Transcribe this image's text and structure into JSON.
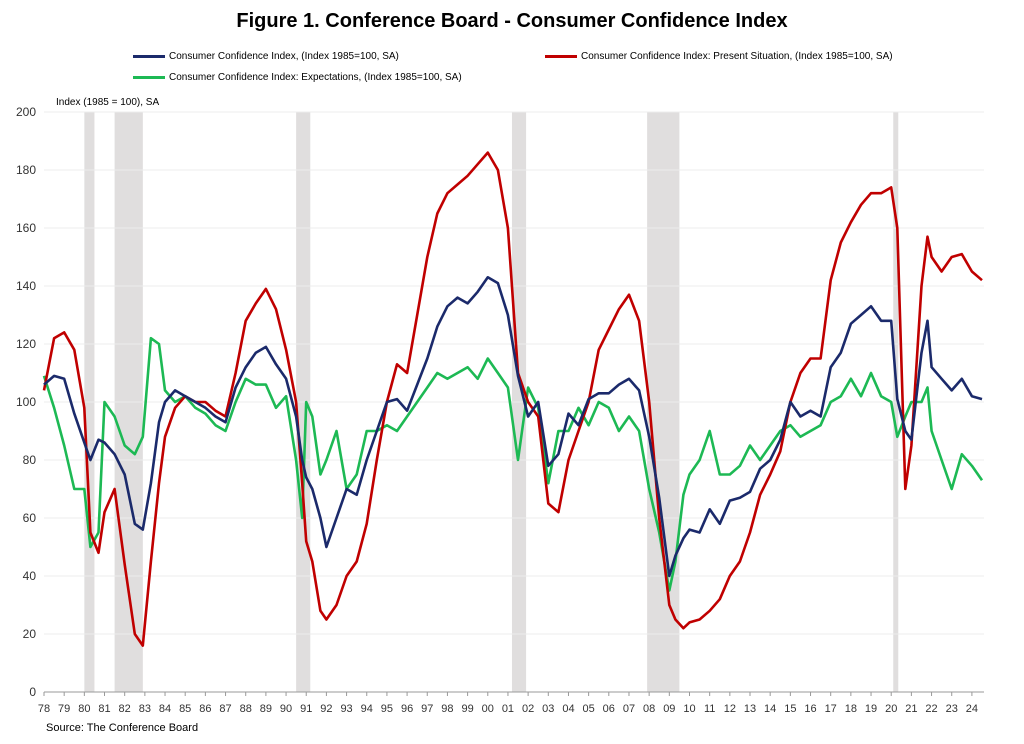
{
  "title": "Figure 1. Conference Board - Consumer Confidence Index",
  "source": "Source: The Conference Board",
  "chart_data": {
    "type": "line",
    "title": "Figure 1. Conference Board - Consumer Confidence Index",
    "ylabel": "Index (1985 = 100), SA",
    "xlabel": "",
    "ylim": [
      0,
      200
    ],
    "yticks": [
      0,
      20,
      40,
      60,
      80,
      100,
      120,
      140,
      160,
      180,
      200
    ],
    "xlim": [
      1978.0,
      2024.6
    ],
    "xticks": [
      "78",
      "79",
      "80",
      "81",
      "82",
      "83",
      "84",
      "85",
      "86",
      "87",
      "88",
      "89",
      "90",
      "91",
      "92",
      "93",
      "94",
      "95",
      "96",
      "97",
      "98",
      "99",
      "00",
      "01",
      "02",
      "03",
      "04",
      "05",
      "06",
      "07",
      "08",
      "09",
      "10",
      "11",
      "12",
      "13",
      "14",
      "15",
      "16",
      "17",
      "18",
      "19",
      "20",
      "21",
      "22",
      "23",
      "24"
    ],
    "grid": true,
    "legend_position": "top",
    "recessions": [
      [
        1980.0,
        1980.5
      ],
      [
        1981.5,
        1982.9
      ],
      [
        1990.5,
        1991.2
      ],
      [
        2001.2,
        2001.9
      ],
      [
        2007.9,
        2009.5
      ],
      [
        2020.1,
        2020.35
      ]
    ],
    "series": [
      {
        "name": "Consumer Confidence Index, (Index 1985=100, SA)",
        "color": "#1b2a6b",
        "x": [
          1978.0,
          1978.5,
          1979.0,
          1979.5,
          1980.0,
          1980.3,
          1980.7,
          1981.0,
          1981.5,
          1982.0,
          1982.5,
          1982.9,
          1983.3,
          1983.7,
          1984.0,
          1984.5,
          1985.0,
          1985.5,
          1986.0,
          1986.5,
          1987.0,
          1987.5,
          1988.0,
          1988.5,
          1989.0,
          1989.5,
          1990.0,
          1990.5,
          1990.8,
          1991.0,
          1991.3,
          1991.7,
          1992.0,
          1992.5,
          1993.0,
          1993.5,
          1994.0,
          1994.5,
          1995.0,
          1995.5,
          1996.0,
          1996.5,
          1997.0,
          1997.5,
          1998.0,
          1998.5,
          1999.0,
          1999.5,
          2000.0,
          2000.5,
          2001.0,
          2001.5,
          2002.0,
          2002.5,
          2003.0,
          2003.5,
          2004.0,
          2004.5,
          2005.0,
          2005.5,
          2006.0,
          2006.5,
          2007.0,
          2007.5,
          2008.0,
          2008.5,
          2009.0,
          2009.3,
          2009.7,
          2010.0,
          2010.5,
          2011.0,
          2011.5,
          2012.0,
          2012.5,
          2013.0,
          2013.5,
          2014.0,
          2014.5,
          2015.0,
          2015.5,
          2016.0,
          2016.5,
          2017.0,
          2017.5,
          2018.0,
          2018.5,
          2019.0,
          2019.5,
          2020.0,
          2020.3,
          2020.7,
          2021.0,
          2021.5,
          2021.8,
          2022.0,
          2022.5,
          2023.0,
          2023.5,
          2024.0,
          2024.5
        ],
        "y": [
          106,
          109,
          108,
          96,
          86,
          80,
          87,
          86,
          82,
          75,
          58,
          56,
          72,
          93,
          100,
          104,
          102,
          100,
          98,
          95,
          93,
          105,
          112,
          117,
          119,
          113,
          108,
          95,
          80,
          74,
          70,
          60,
          50,
          60,
          70,
          68,
          80,
          90,
          100,
          101,
          97,
          106,
          115,
          126,
          133,
          136,
          134,
          138,
          143,
          141,
          130,
          109,
          95,
          100,
          78,
          82,
          96,
          92,
          101,
          103,
          103,
          106,
          108,
          104,
          88,
          67,
          40,
          47,
          53,
          56,
          55,
          63,
          58,
          66,
          67,
          69,
          77,
          80,
          87,
          100,
          95,
          97,
          95,
          112,
          117,
          127,
          130,
          133,
          128,
          128,
          101,
          90,
          87,
          117,
          128,
          112,
          108,
          104,
          108,
          102,
          101
        ]
      },
      {
        "name": "Consumer Confidence Index: Present Situation, (Index 1985=100, SA)",
        "color": "#c00000",
        "x": [
          1978.0,
          1978.5,
          1979.0,
          1979.5,
          1980.0,
          1980.3,
          1980.7,
          1981.0,
          1981.5,
          1982.0,
          1982.5,
          1982.9,
          1983.3,
          1983.7,
          1984.0,
          1984.5,
          1985.0,
          1985.5,
          1986.0,
          1986.5,
          1987.0,
          1987.5,
          1988.0,
          1988.5,
          1989.0,
          1989.5,
          1990.0,
          1990.5,
          1990.8,
          1991.0,
          1991.3,
          1991.7,
          1992.0,
          1992.5,
          1993.0,
          1993.5,
          1994.0,
          1994.5,
          1995.0,
          1995.5,
          1996.0,
          1996.5,
          1997.0,
          1997.5,
          1998.0,
          1998.5,
          1999.0,
          1999.5,
          2000.0,
          2000.5,
          2001.0,
          2001.5,
          2002.0,
          2002.5,
          2003.0,
          2003.5,
          2004.0,
          2004.5,
          2005.0,
          2005.5,
          2006.0,
          2006.5,
          2007.0,
          2007.5,
          2008.0,
          2008.5,
          2009.0,
          2009.3,
          2009.7,
          2010.0,
          2010.5,
          2011.0,
          2011.5,
          2012.0,
          2012.5,
          2013.0,
          2013.5,
          2014.0,
          2014.5,
          2015.0,
          2015.5,
          2016.0,
          2016.5,
          2017.0,
          2017.5,
          2018.0,
          2018.5,
          2019.0,
          2019.5,
          2020.0,
          2020.3,
          2020.7,
          2021.0,
          2021.5,
          2021.8,
          2022.0,
          2022.5,
          2023.0,
          2023.5,
          2024.0,
          2024.5
        ],
        "y": [
          104,
          122,
          124,
          118,
          98,
          55,
          48,
          62,
          70,
          44,
          20,
          16,
          45,
          72,
          88,
          98,
          102,
          100,
          100,
          97,
          95,
          110,
          128,
          134,
          139,
          132,
          118,
          100,
          72,
          52,
          45,
          28,
          25,
          30,
          40,
          45,
          58,
          80,
          100,
          113,
          110,
          130,
          150,
          165,
          172,
          175,
          178,
          182,
          186,
          180,
          160,
          110,
          100,
          95,
          65,
          62,
          80,
          90,
          100,
          118,
          125,
          132,
          137,
          128,
          100,
          60,
          30,
          25,
          22,
          24,
          25,
          28,
          32,
          40,
          45,
          55,
          68,
          75,
          83,
          100,
          110,
          115,
          115,
          142,
          155,
          162,
          168,
          172,
          172,
          174,
          160,
          70,
          85,
          140,
          157,
          150,
          145,
          150,
          151,
          145,
          142
        ]
      },
      {
        "name": "Consumer Confidence Index: Expectations, (Index 1985=100, SA)",
        "color": "#1db954",
        "x": [
          1978.0,
          1978.5,
          1979.0,
          1979.5,
          1980.0,
          1980.3,
          1980.7,
          1981.0,
          1981.5,
          1982.0,
          1982.5,
          1982.9,
          1983.3,
          1983.7,
          1984.0,
          1984.5,
          1985.0,
          1985.5,
          1986.0,
          1986.5,
          1987.0,
          1987.5,
          1988.0,
          1988.5,
          1989.0,
          1989.5,
          1990.0,
          1990.5,
          1990.8,
          1991.0,
          1991.3,
          1991.7,
          1992.0,
          1992.5,
          1993.0,
          1993.5,
          1994.0,
          1994.5,
          1995.0,
          1995.5,
          1996.0,
          1996.5,
          1997.0,
          1997.5,
          1998.0,
          1998.5,
          1999.0,
          1999.5,
          2000.0,
          2000.5,
          2001.0,
          2001.5,
          2002.0,
          2002.5,
          2003.0,
          2003.5,
          2004.0,
          2004.5,
          2005.0,
          2005.5,
          2006.0,
          2006.5,
          2007.0,
          2007.5,
          2008.0,
          2008.5,
          2009.0,
          2009.3,
          2009.7,
          2010.0,
          2010.5,
          2011.0,
          2011.5,
          2012.0,
          2012.5,
          2013.0,
          2013.5,
          2014.0,
          2014.5,
          2015.0,
          2015.5,
          2016.0,
          2016.5,
          2017.0,
          2017.5,
          2018.0,
          2018.5,
          2019.0,
          2019.5,
          2020.0,
          2020.3,
          2020.7,
          2021.0,
          2021.5,
          2021.8,
          2022.0,
          2022.5,
          2023.0,
          2023.5,
          2024.0,
          2024.5
        ],
        "y": [
          109,
          98,
          85,
          70,
          70,
          50,
          55,
          100,
          95,
          85,
          82,
          88,
          122,
          120,
          104,
          100,
          102,
          98,
          96,
          92,
          90,
          100,
          108,
          106,
          106,
          98,
          102,
          80,
          60,
          100,
          95,
          75,
          80,
          90,
          70,
          75,
          90,
          90,
          92,
          90,
          95,
          100,
          105,
          110,
          108,
          110,
          112,
          108,
          115,
          110,
          105,
          80,
          105,
          98,
          72,
          90,
          90,
          98,
          92,
          100,
          98,
          90,
          95,
          90,
          70,
          55,
          35,
          45,
          68,
          75,
          80,
          90,
          75,
          75,
          78,
          85,
          80,
          85,
          90,
          92,
          88,
          90,
          92,
          100,
          102,
          108,
          102,
          110,
          102,
          100,
          88,
          95,
          100,
          100,
          105,
          90,
          80,
          70,
          82,
          78,
          73
        ]
      }
    ]
  }
}
